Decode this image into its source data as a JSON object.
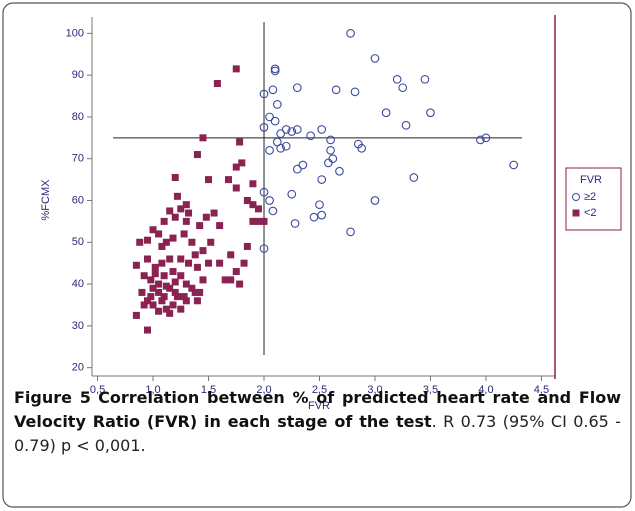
{
  "chart_data": {
    "type": "scatter",
    "xlabel": "FVR",
    "ylabel": "%FCMX",
    "xlim": [
      0.45,
      4.55
    ],
    "ylim": [
      18,
      102
    ],
    "xticks": [
      {
        "value": 0.5,
        "label": "0,5"
      },
      {
        "value": 1.0,
        "label": "1,0"
      },
      {
        "value": 1.5,
        "label": "1,5"
      },
      {
        "value": 2.0,
        "label": "2,0"
      },
      {
        "value": 2.5,
        "label": "2,5"
      },
      {
        "value": 3.0,
        "label": "3,0"
      },
      {
        "value": 3.5,
        "label": "3,5"
      },
      {
        "value": 4.0,
        "label": "4,0"
      },
      {
        "value": 4.5,
        "label": "4,5"
      }
    ],
    "yticks": [
      20,
      30,
      40,
      50,
      60,
      70,
      80,
      90,
      100
    ],
    "vline": 2.0,
    "hline": 75,
    "legend_title": "FVR",
    "legend": "right",
    "series": [
      {
        "name": "≥2",
        "color": "#3a4aa0",
        "marker": "circle",
        "x": [
          2.78,
          3.0,
          2.1,
          2.1,
          2.0,
          2.08,
          2.3,
          2.65,
          2.82,
          3.2,
          3.25,
          3.45,
          2.12,
          2.05,
          2.1,
          2.0,
          2.15,
          2.2,
          2.25,
          2.3,
          2.42,
          2.52,
          2.12,
          2.2,
          2.05,
          2.15,
          2.6,
          2.6,
          2.62,
          2.58,
          2.68,
          2.3,
          2.35,
          2.85,
          2.88,
          3.1,
          3.28,
          3.5,
          3.95,
          4.0,
          4.25,
          3.35,
          2.52,
          2.0,
          2.05,
          2.08,
          2.25,
          2.28,
          2.45,
          2.5,
          2.52,
          2.78,
          3.0,
          2.0
        ],
        "values": [
          100,
          94,
          91.5,
          91,
          85.5,
          86.5,
          87,
          86.5,
          86,
          89,
          87,
          89,
          83,
          80,
          79,
          77.5,
          76,
          77,
          76.5,
          77,
          75.5,
          77,
          74,
          73,
          72,
          72.5,
          74.5,
          72,
          70,
          69,
          67,
          67.5,
          68.5,
          73.5,
          72.5,
          81,
          78,
          81,
          74.5,
          75,
          68.5,
          65.5,
          65,
          62,
          60,
          57.5,
          61.5,
          54.5,
          56,
          59,
          56.5,
          52.5,
          60,
          48.5
        ]
      },
      {
        "name": "<2",
        "color": "#8a2252",
        "marker": "square",
        "x": [
          1.75,
          1.58,
          1.45,
          1.78,
          1.8,
          1.4,
          1.75,
          1.2,
          1.5,
          1.68,
          1.75,
          1.9,
          1.85,
          1.9,
          1.95,
          1.9,
          1.95,
          2.0,
          1.3,
          1.32,
          1.22,
          1.25,
          1.3,
          1.2,
          1.15,
          1.1,
          1.05,
          1.0,
          0.95,
          0.88,
          1.08,
          1.12,
          1.18,
          1.28,
          1.35,
          1.42,
          1.48,
          1.55,
          1.6,
          1.52,
          1.45,
          1.38,
          1.32,
          1.25,
          1.15,
          1.08,
          1.02,
          0.95,
          0.85,
          0.92,
          0.98,
          1.05,
          1.1,
          1.18,
          1.25,
          1.3,
          1.4,
          1.5,
          1.6,
          1.7,
          1.75,
          1.7,
          1.78,
          1.82,
          1.85,
          1.65,
          1.45,
          1.35,
          1.28,
          1.2,
          1.15,
          1.1,
          1.05,
          1.0,
          0.98,
          0.95,
          0.92,
          0.9,
          1.0,
          1.08,
          1.12,
          1.18,
          1.22,
          1.3,
          1.38,
          1.42,
          1.25,
          1.15,
          1.05,
          0.85,
          0.95,
          1.02,
          1.12,
          1.2,
          1.4
        ],
        "values": [
          91.5,
          88,
          75,
          74,
          69,
          71,
          68,
          65.5,
          65,
          65,
          63,
          64,
          60,
          59,
          58,
          55,
          55,
          55,
          59,
          57,
          61,
          58,
          55,
          56,
          57.5,
          55,
          52,
          53,
          50.5,
          50,
          49,
          50,
          51,
          52,
          50,
          54,
          56,
          57,
          54,
          50,
          48,
          47,
          45,
          46,
          46,
          45,
          44,
          46,
          44.5,
          42,
          41,
          40,
          42,
          43,
          42,
          40,
          44,
          45,
          45,
          47,
          43,
          41,
          40,
          45,
          49,
          41,
          41,
          39,
          37,
          38,
          39,
          37,
          38,
          39,
          37,
          36,
          35,
          38,
          35,
          36,
          34,
          35,
          37,
          36,
          38,
          38,
          34,
          33,
          33.5,
          32.5,
          29,
          42.5,
          39.5,
          40.5,
          36
        ]
      }
    ]
  },
  "caption": {
    "label": "Figure 5",
    "title": "Correlation between % of predicted heart rate and Flow Velocity Ratio (FVR) in each stage of the test",
    "text": ". R 0.73 (95% CI 0.65 - 0.79) p < 0,001."
  }
}
